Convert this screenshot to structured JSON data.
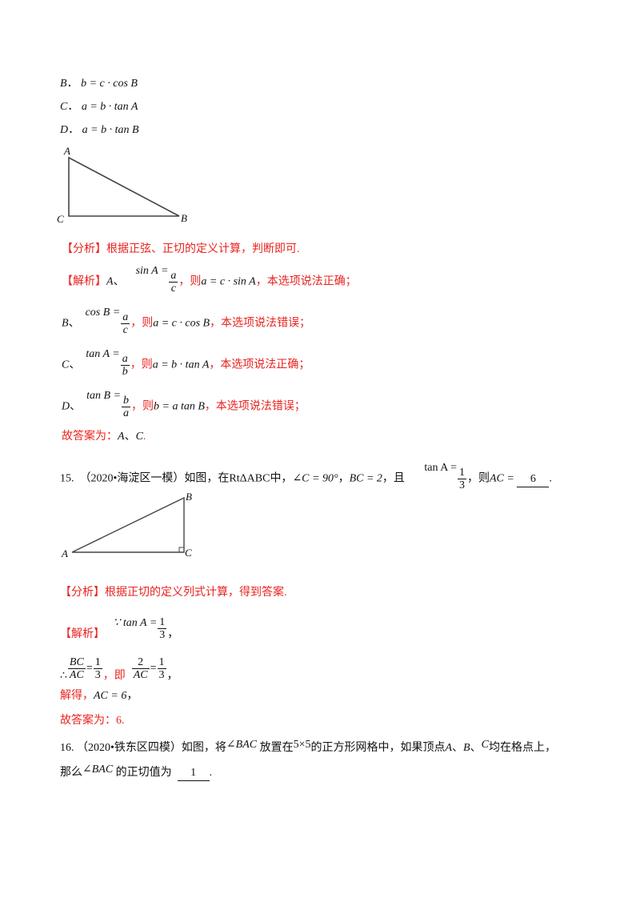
{
  "options": [
    {
      "letter": "B",
      "sep": "．",
      "expr": "b = c · cos B"
    },
    {
      "letter": "C",
      "sep": "．",
      "expr": "a = b · tan A"
    },
    {
      "letter": "D",
      "sep": "．",
      "expr": "a = b · tan B"
    }
  ],
  "figure1": {
    "A": "A",
    "B": "B",
    "C": "C"
  },
  "q14": {
    "analysis": "【分析】根据正弦、正切的定义计算，判断即可.",
    "solution_tag": "【解析】",
    "rows": [
      {
        "letter": "A",
        "sep": "、",
        "lhs": "sin A =",
        "num": "a",
        "den": "c",
        "then": "，则",
        "result": "a = c · sin A",
        "comma": "，",
        "verdict": "本选项说法正确；"
      },
      {
        "letter": "B",
        "sep": "、",
        "lhs": "cos B =",
        "num": "a",
        "den": "c",
        "then": "，则",
        "result": "a = c · cos B",
        "comma": "，",
        "verdict": "本选项说法错误；"
      },
      {
        "letter": "C",
        "sep": "、",
        "lhs": "tan A =",
        "num": "a",
        "den": "b",
        "then": "，则",
        "result": "a = b · tan A",
        "comma": "，",
        "verdict": "本选项说法正确；"
      },
      {
        "letter": "D",
        "sep": "、",
        "lhs": "tan B =",
        "num": "b",
        "den": "a",
        "then": "，则",
        "result": "b = a tan B",
        "comma": "，",
        "verdict": "本选项说法错误；"
      }
    ],
    "answer_prefix": "故答案为：",
    "answer_a": "A",
    "answer_sep": "、",
    "answer_c": "C",
    "answer_end": "."
  },
  "q15": {
    "number": "15.",
    "source": "（2020•海淀区一模）如图，在",
    "tri": "RtΔABC",
    "mid": "中，",
    "angle": "∠C = 90°",
    "c1": "，",
    "bc": "BC = 2",
    "qie": "，且",
    "tan_lhs": "tan A =",
    "tan_num": "1",
    "tan_den": "3",
    "ze": "，则",
    "ac": "AC =",
    "answer": "6",
    "end": ".",
    "figure": {
      "A": "A",
      "B": "B",
      "C": "C"
    },
    "analysis": "【分析】根据正切的定义列式计算，得到答案.",
    "solution_tag": "【解析】",
    "because": "∵ tan A =",
    "b_num": "1",
    "b_den": "3",
    "b_comma": "，",
    "therefore": "∴",
    "f1_num": "BC",
    "f1_den": "AC",
    "eq": "=",
    "f2_num": "1",
    "f2_den": "3",
    "ji": "，即",
    "f3_num": "2",
    "f3_den": "AC",
    "f4_num": "1",
    "f4_den": "3",
    "t_comma": "，",
    "solve_label": "解得，",
    "solve_expr": "AC = 6",
    "solve_comma": "，",
    "final": "故答案为：6."
  },
  "q16": {
    "number": "16.",
    "source": "（2020•铁东区四模）如图，将",
    "angle": "∠BAC",
    "t1": "放置在",
    "grid": "5×5",
    "t2": "的正方形网格中，如果顶点",
    "a": "A",
    "s1": "、",
    "b": "B",
    "s2": "、",
    "c": "C",
    "t3": "均在格点上，",
    "l2_pre": "那么",
    "l2_angle": "∠BAC",
    "l2_mid": "的正切值为",
    "answer": "1",
    "end": "."
  },
  "colors": {
    "analysis_red": "#e8231f",
    "text": "#111111"
  }
}
